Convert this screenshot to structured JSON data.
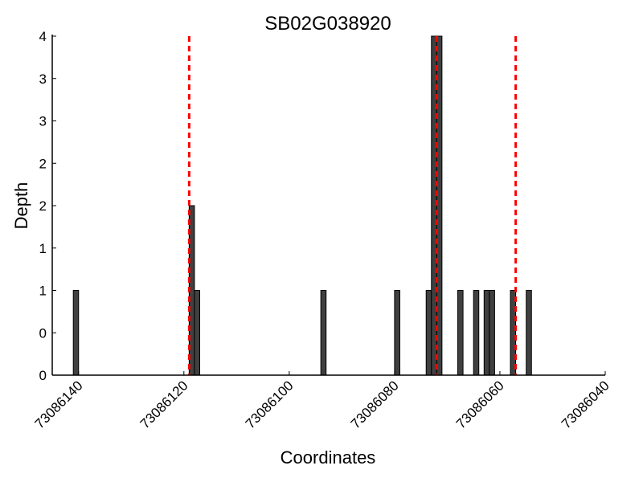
{
  "chart_data": {
    "type": "bar",
    "title": "SB02G038920",
    "xlabel": "Coordinates",
    "ylabel": "Depth",
    "xlim": [
      73086145,
      73086040
    ],
    "ylim": [
      0,
      4
    ],
    "x_ticks": [
      73086140,
      73086120,
      73086100,
      73086080,
      73086060,
      73086040
    ],
    "x_tick_labels": [
      "73086140",
      "73086120",
      "73086100",
      "73086080",
      "73086060",
      "73086040"
    ],
    "y_ticks": [
      0,
      0.5,
      1,
      1.5,
      2,
      2.5,
      3,
      3.5,
      4
    ],
    "y_tick_labels": [
      "0",
      "0",
      "1",
      "1",
      "2",
      "2",
      "3",
      "3",
      "4"
    ],
    "bar_width": 1,
    "bar_color": "#404040",
    "bars": [
      {
        "x": 73086140.5,
        "depth": 1
      },
      {
        "x": 73086118.5,
        "depth": 2
      },
      {
        "x": 73086117.5,
        "depth": 1
      },
      {
        "x": 73086093.5,
        "depth": 1
      },
      {
        "x": 73086079.5,
        "depth": 1
      },
      {
        "x": 73086073.5,
        "depth": 1
      },
      {
        "x": 73086072.5,
        "depth": 4
      },
      {
        "x": 73086071.5,
        "depth": 4
      },
      {
        "x": 73086067.5,
        "depth": 1
      },
      {
        "x": 73086064.5,
        "depth": 1
      },
      {
        "x": 73086062.5,
        "depth": 1
      },
      {
        "x": 73086061.5,
        "depth": 1
      },
      {
        "x": 73086057.5,
        "depth": 1
      },
      {
        "x": 73086054.5,
        "depth": 1
      }
    ],
    "reference_lines": {
      "color": "#ff0000",
      "style": "dashed",
      "x": [
        73086119,
        73086072,
        73086057
      ]
    }
  }
}
